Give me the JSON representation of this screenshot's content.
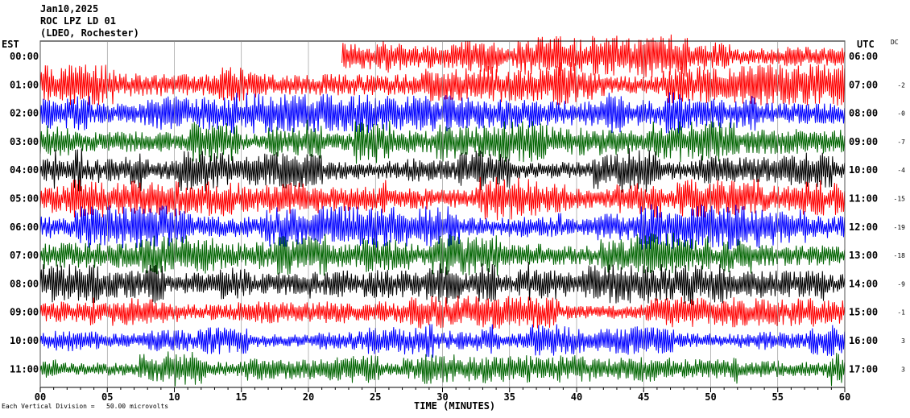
{
  "header": {
    "date": "Jan10,2025",
    "station": "ROC LPZ LD 01",
    "network": "(LDEO, Rochester)"
  },
  "labels": {
    "left_zone": "EST",
    "right_zone": "UTC",
    "dc_header": "DC",
    "x_title": "TIME (MINUTES)",
    "scale_note": "Each Vertical Division =   50.00 microvolts"
  },
  "chart_data": {
    "type": "line",
    "title": "",
    "xlabel": "TIME (MINUTES)",
    "xlim": [
      0,
      60
    ],
    "x_ticks": [
      "00",
      "05",
      "10",
      "15",
      "20",
      "25",
      "30",
      "35",
      "40",
      "45",
      "50",
      "55",
      "60"
    ],
    "grid": true,
    "series_colors": [
      "#ff0000",
      "#0000ff",
      "#006400",
      "#000000"
    ],
    "rows": [
      {
        "est": "00:00",
        "utc": "06:00",
        "dc": "",
        "color": "#ff0000",
        "start_minute": 22.5
      },
      {
        "est": "01:00",
        "utc": "07:00",
        "dc": "-2",
        "color": "#ff0000",
        "start_minute": 0
      },
      {
        "est": "02:00",
        "utc": "08:00",
        "dc": "-0",
        "color": "#0000ff",
        "start_minute": 0
      },
      {
        "est": "03:00",
        "utc": "09:00",
        "dc": "-7",
        "color": "#006400",
        "start_minute": 0
      },
      {
        "est": "04:00",
        "utc": "10:00",
        "dc": "-4",
        "color": "#000000",
        "start_minute": 0
      },
      {
        "est": "05:00",
        "utc": "11:00",
        "dc": "-15",
        "color": "#ff0000",
        "start_minute": 0
      },
      {
        "est": "06:00",
        "utc": "12:00",
        "dc": "-19",
        "color": "#0000ff",
        "start_minute": 0
      },
      {
        "est": "07:00",
        "utc": "13:00",
        "dc": "-18",
        "color": "#006400",
        "start_minute": 0
      },
      {
        "est": "08:00",
        "utc": "14:00",
        "dc": "-9",
        "color": "#000000",
        "start_minute": 0
      },
      {
        "est": "09:00",
        "utc": "15:00",
        "dc": "-1",
        "color": "#ff0000",
        "start_minute": 0
      },
      {
        "est": "10:00",
        "utc": "16:00",
        "dc": "3",
        "color": "#0000ff",
        "start_minute": 0
      },
      {
        "est": "11:00",
        "utc": "17:00",
        "dc": "3",
        "color": "#006400",
        "start_minute": 0
      }
    ]
  }
}
